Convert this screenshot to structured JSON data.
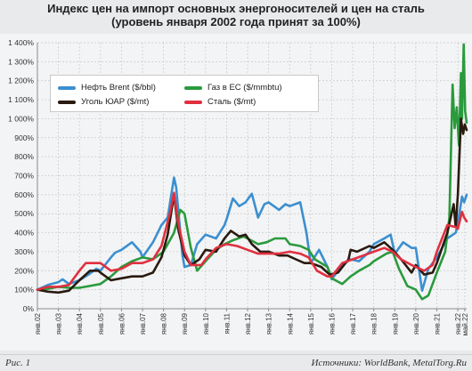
{
  "header": {
    "title_line1": "Индекс цен на импорт основных энергоносителей и цен на сталь",
    "title_line2": "(уровень января 2002 года принят за 100%)"
  },
  "footer": {
    "figure_label": "Рис. 1",
    "sources": "Источники: WorldBank, MetalTorg.Ru"
  },
  "chart_data": {
    "type": "line",
    "ylim": [
      0,
      1400
    ],
    "y_ticks": [
      "0%",
      "100%",
      "200%",
      "300%",
      "400%",
      "500%",
      "600%",
      "700%",
      "800%",
      "900%",
      "1 000%",
      "1 100%",
      "1 200%",
      "1 300%",
      "1 400%"
    ],
    "y_tick_values": [
      0,
      100,
      200,
      300,
      400,
      500,
      600,
      700,
      800,
      900,
      1000,
      1100,
      1200,
      1300,
      1400
    ],
    "x_range": [
      2002.0,
      2022.42
    ],
    "x_ticks": [
      "янв.02",
      "янв.03",
      "янв.04",
      "янв.05",
      "янв.06",
      "янв.07",
      "янв.08",
      "янв.09",
      "янв.10",
      "янв.11",
      "янв.12",
      "янв.13",
      "янв.14",
      "янв.15",
      "янв.16",
      "янв.17",
      "янв.18",
      "янв.19",
      "янв.20",
      "янв.21",
      "янв.22",
      "май.22"
    ],
    "x_tick_values": [
      2002,
      2003,
      2004,
      2005,
      2006,
      2007,
      2008,
      2009,
      2010,
      2011,
      2012,
      2013,
      2014,
      2015,
      2016,
      2017,
      2018,
      2019,
      2020,
      2021,
      2022,
      2022.33
    ],
    "grid": true,
    "legend_placement": "top-left",
    "series": [
      {
        "name": "Нефть Brent ($/bbl)",
        "color": "#3b8fd0",
        "points": [
          [
            2002.0,
            100
          ],
          [
            2002.5,
            125
          ],
          [
            2003.0,
            140
          ],
          [
            2003.2,
            155
          ],
          [
            2003.5,
            130
          ],
          [
            2004.0,
            150
          ],
          [
            2004.5,
            185
          ],
          [
            2004.8,
            210
          ],
          [
            2005.0,
            200
          ],
          [
            2005.5,
            270
          ],
          [
            2005.7,
            295
          ],
          [
            2006.0,
            310
          ],
          [
            2006.5,
            350
          ],
          [
            2006.9,
            300
          ],
          [
            2007.0,
            270
          ],
          [
            2007.5,
            350
          ],
          [
            2007.9,
            440
          ],
          [
            2008.2,
            480
          ],
          [
            2008.5,
            690
          ],
          [
            2008.6,
            640
          ],
          [
            2008.9,
            280
          ],
          [
            2009.0,
            220
          ],
          [
            2009.3,
            230
          ],
          [
            2009.6,
            340
          ],
          [
            2010.0,
            390
          ],
          [
            2010.5,
            370
          ],
          [
            2010.9,
            440
          ],
          [
            2011.0,
            470
          ],
          [
            2011.3,
            580
          ],
          [
            2011.6,
            540
          ],
          [
            2011.9,
            560
          ],
          [
            2012.2,
            605
          ],
          [
            2012.5,
            480
          ],
          [
            2012.8,
            550
          ],
          [
            2013.0,
            560
          ],
          [
            2013.5,
            520
          ],
          [
            2013.8,
            550
          ],
          [
            2014.0,
            540
          ],
          [
            2014.5,
            560
          ],
          [
            2014.8,
            400
          ],
          [
            2015.0,
            240
          ],
          [
            2015.4,
            310
          ],
          [
            2015.8,
            220
          ],
          [
            2016.0,
            155
          ],
          [
            2016.5,
            230
          ],
          [
            2016.9,
            260
          ],
          [
            2017.3,
            250
          ],
          [
            2017.8,
            300
          ],
          [
            2018.0,
            340
          ],
          [
            2018.5,
            370
          ],
          [
            2018.8,
            390
          ],
          [
            2019.0,
            290
          ],
          [
            2019.4,
            350
          ],
          [
            2019.8,
            320
          ],
          [
            2020.0,
            320
          ],
          [
            2020.3,
            95
          ],
          [
            2020.6,
            210
          ],
          [
            2021.0,
            270
          ],
          [
            2021.5,
            370
          ],
          [
            2021.9,
            400
          ],
          [
            2022.0,
            450
          ],
          [
            2022.2,
            590
          ],
          [
            2022.3,
            560
          ],
          [
            2022.42,
            600
          ]
        ]
      },
      {
        "name": "Уголь ЮАР ($/mt)",
        "color": "#2a1a10",
        "points": [
          [
            2002.0,
            100
          ],
          [
            2002.5,
            90
          ],
          [
            2003.0,
            85
          ],
          [
            2003.5,
            95
          ],
          [
            2004.0,
            150
          ],
          [
            2004.5,
            200
          ],
          [
            2004.9,
            200
          ],
          [
            2005.0,
            190
          ],
          [
            2005.5,
            150
          ],
          [
            2006.0,
            160
          ],
          [
            2006.5,
            170
          ],
          [
            2007.0,
            170
          ],
          [
            2007.5,
            190
          ],
          [
            2007.9,
            270
          ],
          [
            2008.2,
            390
          ],
          [
            2008.5,
            600
          ],
          [
            2008.7,
            420
          ],
          [
            2009.0,
            280
          ],
          [
            2009.3,
            230
          ],
          [
            2009.7,
            260
          ],
          [
            2010.0,
            310
          ],
          [
            2010.5,
            300
          ],
          [
            2010.9,
            370
          ],
          [
            2011.2,
            410
          ],
          [
            2011.6,
            380
          ],
          [
            2011.9,
            390
          ],
          [
            2012.2,
            340
          ],
          [
            2012.6,
            300
          ],
          [
            2013.0,
            300
          ],
          [
            2013.5,
            280
          ],
          [
            2013.9,
            280
          ],
          [
            2014.3,
            260
          ],
          [
            2014.7,
            240
          ],
          [
            2015.0,
            240
          ],
          [
            2015.5,
            220
          ],
          [
            2015.9,
            180
          ],
          [
            2016.3,
            190
          ],
          [
            2016.8,
            260
          ],
          [
            2016.9,
            310
          ],
          [
            2017.2,
            300
          ],
          [
            2017.8,
            330
          ],
          [
            2018.0,
            320
          ],
          [
            2018.5,
            350
          ],
          [
            2018.9,
            310
          ],
          [
            2019.3,
            260
          ],
          [
            2019.8,
            190
          ],
          [
            2020.0,
            230
          ],
          [
            2020.4,
            180
          ],
          [
            2020.8,
            190
          ],
          [
            2021.0,
            240
          ],
          [
            2021.5,
            400
          ],
          [
            2021.8,
            550
          ],
          [
            2021.9,
            430
          ],
          [
            2022.0,
            600
          ],
          [
            2022.15,
            1000
          ],
          [
            2022.25,
            920
          ],
          [
            2022.33,
            970
          ],
          [
            2022.42,
            940
          ]
        ]
      },
      {
        "name": "Газ в ЕС ($/mmbtu)",
        "color": "#2a9a3c",
        "points": [
          [
            2002.0,
            100
          ],
          [
            2002.5,
            105
          ],
          [
            2003.0,
            115
          ],
          [
            2003.5,
            110
          ],
          [
            2004.0,
            110
          ],
          [
            2004.5,
            120
          ],
          [
            2005.0,
            130
          ],
          [
            2005.5,
            170
          ],
          [
            2006.0,
            220
          ],
          [
            2006.5,
            250
          ],
          [
            2007.0,
            270
          ],
          [
            2007.5,
            260
          ],
          [
            2008.0,
            300
          ],
          [
            2008.5,
            400
          ],
          [
            2008.8,
            520
          ],
          [
            2009.0,
            500
          ],
          [
            2009.3,
            320
          ],
          [
            2009.6,
            200
          ],
          [
            2010.0,
            250
          ],
          [
            2010.5,
            310
          ],
          [
            2010.9,
            340
          ],
          [
            2011.3,
            360
          ],
          [
            2011.8,
            380
          ],
          [
            2012.0,
            370
          ],
          [
            2012.5,
            340
          ],
          [
            2012.9,
            350
          ],
          [
            2013.3,
            370
          ],
          [
            2013.8,
            370
          ],
          [
            2014.0,
            340
          ],
          [
            2014.5,
            330
          ],
          [
            2014.9,
            310
          ],
          [
            2015.2,
            260
          ],
          [
            2015.8,
            220
          ],
          [
            2016.0,
            160
          ],
          [
            2016.5,
            130
          ],
          [
            2016.9,
            170
          ],
          [
            2017.3,
            200
          ],
          [
            2017.8,
            230
          ],
          [
            2018.0,
            250
          ],
          [
            2018.6,
            290
          ],
          [
            2018.9,
            300
          ],
          [
            2019.2,
            210
          ],
          [
            2019.6,
            120
          ],
          [
            2020.0,
            100
          ],
          [
            2020.3,
            50
          ],
          [
            2020.6,
            70
          ],
          [
            2021.0,
            190
          ],
          [
            2021.4,
            300
          ],
          [
            2021.6,
            480
          ],
          [
            2021.75,
            1180
          ],
          [
            2021.85,
            950
          ],
          [
            2021.95,
            1060
          ],
          [
            2022.05,
            860
          ],
          [
            2022.15,
            1240
          ],
          [
            2022.2,
            1000
          ],
          [
            2022.28,
            1390
          ],
          [
            2022.35,
            1040
          ],
          [
            2022.42,
            980
          ]
        ]
      },
      {
        "name": "Сталь ($/mt)",
        "color": "#e0303f",
        "points": [
          [
            2002.0,
            100
          ],
          [
            2002.5,
            115
          ],
          [
            2003.0,
            115
          ],
          [
            2003.5,
            125
          ],
          [
            2004.0,
            200
          ],
          [
            2004.3,
            240
          ],
          [
            2004.8,
            240
          ],
          [
            2005.0,
            240
          ],
          [
            2005.5,
            200
          ],
          [
            2006.0,
            210
          ],
          [
            2006.5,
            240
          ],
          [
            2007.0,
            240
          ],
          [
            2007.5,
            260
          ],
          [
            2007.9,
            330
          ],
          [
            2008.3,
            500
          ],
          [
            2008.5,
            610
          ],
          [
            2008.7,
            450
          ],
          [
            2009.0,
            300
          ],
          [
            2009.3,
            230
          ],
          [
            2009.8,
            230
          ],
          [
            2010.0,
            260
          ],
          [
            2010.5,
            320
          ],
          [
            2011.0,
            340
          ],
          [
            2011.5,
            330
          ],
          [
            2012.0,
            310
          ],
          [
            2012.5,
            290
          ],
          [
            2013.0,
            290
          ],
          [
            2013.5,
            290
          ],
          [
            2014.0,
            300
          ],
          [
            2014.5,
            290
          ],
          [
            2014.9,
            270
          ],
          [
            2015.3,
            200
          ],
          [
            2015.8,
            170
          ],
          [
            2016.0,
            170
          ],
          [
            2016.5,
            240
          ],
          [
            2017.0,
            260
          ],
          [
            2017.5,
            280
          ],
          [
            2018.0,
            300
          ],
          [
            2018.5,
            320
          ],
          [
            2018.9,
            300
          ],
          [
            2019.3,
            260
          ],
          [
            2019.8,
            230
          ],
          [
            2020.0,
            220
          ],
          [
            2020.4,
            200
          ],
          [
            2020.8,
            230
          ],
          [
            2021.0,
            300
          ],
          [
            2021.5,
            440
          ],
          [
            2021.9,
            430
          ],
          [
            2022.0,
            420
          ],
          [
            2022.2,
            510
          ],
          [
            2022.3,
            480
          ],
          [
            2022.42,
            460
          ]
        ]
      }
    ]
  }
}
